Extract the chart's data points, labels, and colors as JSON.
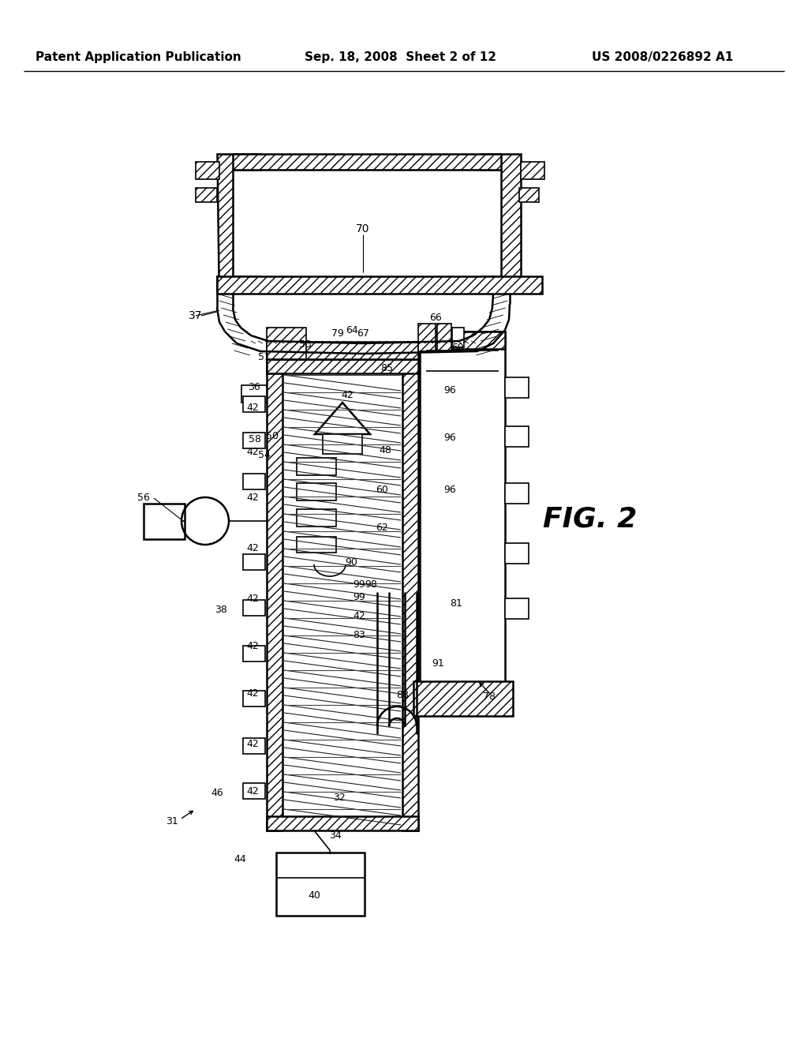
{
  "bg_color": "#ffffff",
  "header_left": "Patent Application Publication",
  "header_center": "Sep. 18, 2008  Sheet 2 of 12",
  "header_right": "US 2008/0226892 A1",
  "fig_label": "FIG. 2"
}
